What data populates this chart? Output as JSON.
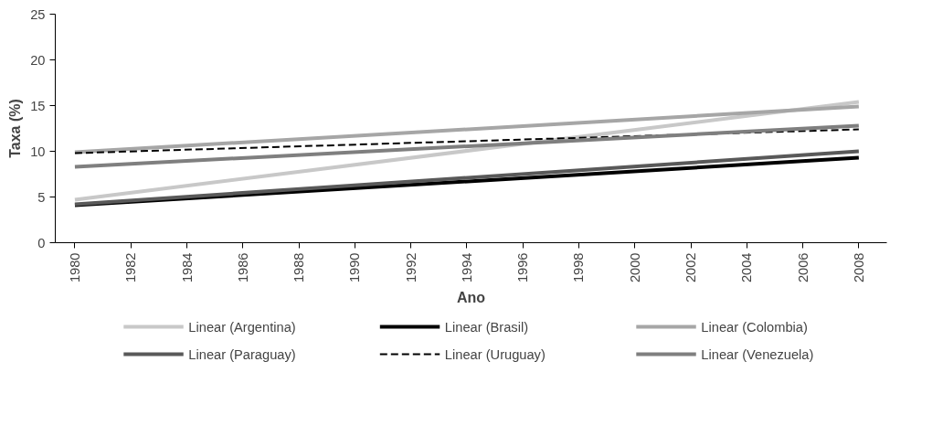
{
  "chart_data": {
    "type": "line",
    "xlabel": "Ano",
    "ylabel": "Taxa (%)",
    "x": [
      1980,
      2008
    ],
    "series": [
      {
        "name": "Linear (Argentina)",
        "color": "#c8c8c8",
        "values": [
          4.7,
          15.4
        ]
      },
      {
        "name": "Linear (Brasil)",
        "color": "#000000",
        "values": [
          4.1,
          9.3
        ]
      },
      {
        "name": "Linear (Colombia)",
        "color": "#a6a6a6",
        "values": [
          9.9,
          14.9
        ]
      },
      {
        "name": "Linear (Paraguay)",
        "color": "#595959",
        "values": [
          4.2,
          10.0
        ]
      },
      {
        "name": "Linear (Uruguay)",
        "color": "#000000",
        "values": [
          9.8,
          12.4
        ],
        "line_style": "dashed"
      },
      {
        "name": "Linear (Venezuela)",
        "color": "#7f7f7f",
        "values": [
          8.3,
          12.8
        ]
      }
    ],
    "xlim": [
      1979.3,
      2009
    ],
    "xticks": [
      1980,
      1982,
      1984,
      1986,
      1988,
      1990,
      1992,
      1994,
      1996,
      1998,
      2000,
      2002,
      2004,
      2006,
      2008
    ],
    "ylim": [
      0,
      25
    ],
    "yticks": [
      0,
      5,
      10,
      15,
      20,
      25
    ],
    "grid": false,
    "legend": "bottom",
    "marker": "none",
    "line_style": "solid"
  }
}
